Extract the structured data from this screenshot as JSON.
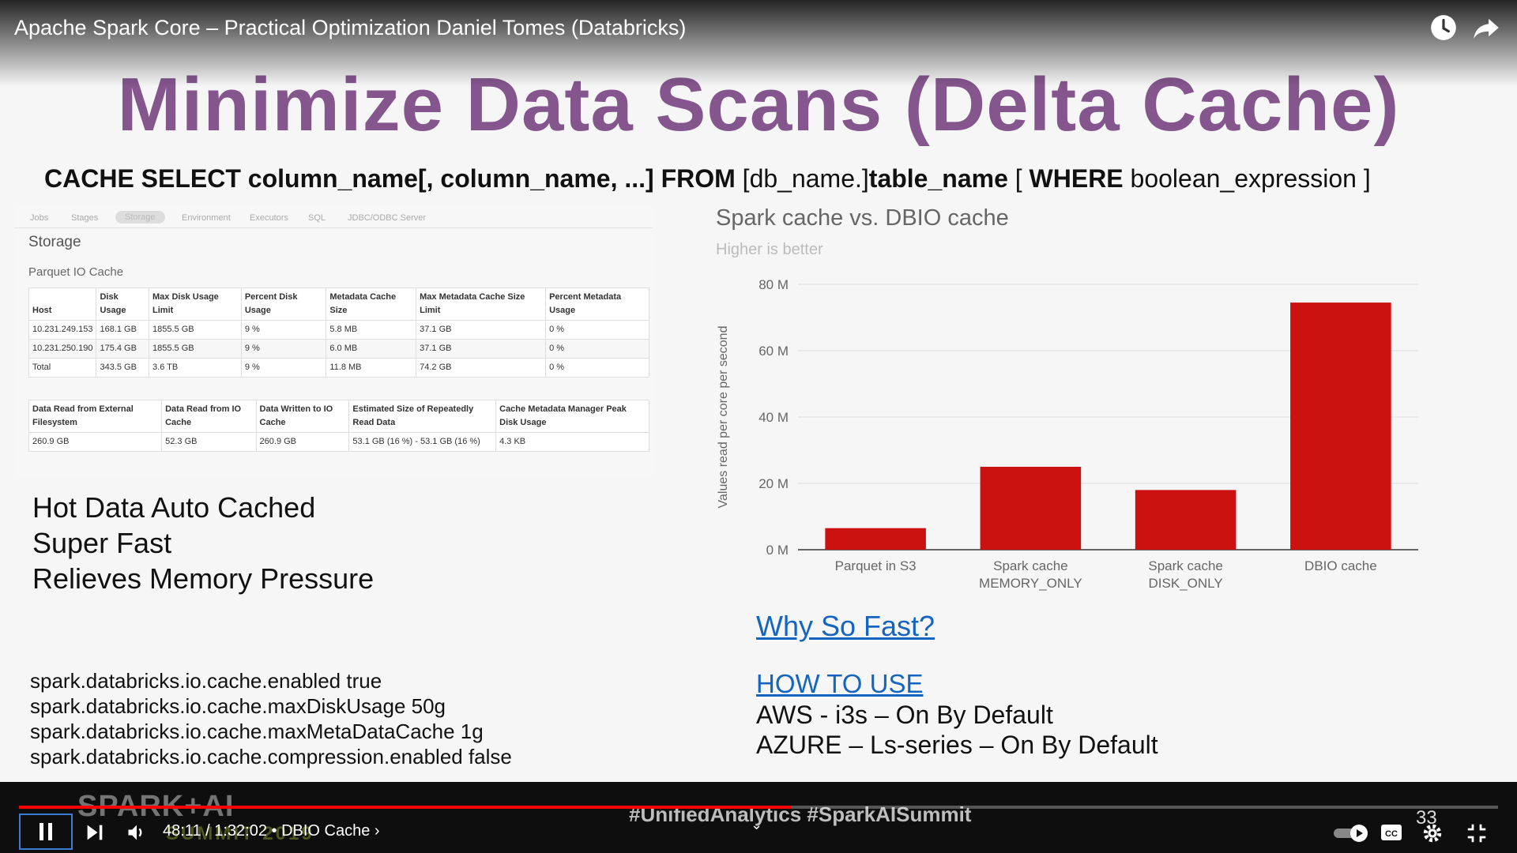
{
  "video": {
    "title": "Apache Spark Core – Practical Optimization Daniel Tomes (Databricks)",
    "icons": [
      "watch-later-icon",
      "share-icon"
    ]
  },
  "slide": {
    "title": "Minimize Data Scans (Delta Cache)",
    "sql": {
      "kw_cache_select": "CACHE SELECT",
      "columns": "column_name[, column_name, ...]",
      "kw_from": "FROM",
      "db": "[db_name.]",
      "table": "table_name",
      "bracket_open": "[",
      "kw_where": "WHERE",
      "expr": "boolean_expression ]"
    },
    "spark_ui": {
      "tabs": [
        "Jobs",
        "Stages",
        "Storage",
        "Environment",
        "Executors",
        "SQL",
        "JDBC/ODBC Server"
      ],
      "active_tab": "Storage",
      "heading": "Storage",
      "subheading": "Parquet IO Cache",
      "table1": {
        "headers": [
          "Host",
          "Disk Usage",
          "Max Disk Usage Limit",
          "Percent Disk Usage",
          "Metadata Cache Size",
          "Max Metadata Cache Size Limit",
          "Percent Metadata Usage"
        ],
        "rows": [
          [
            "10.231.249.153",
            "168.1 GB",
            "1855.5 GB",
            "9 %",
            "5.8 MB",
            "37.1 GB",
            "0 %"
          ],
          [
            "10.231.250.190",
            "175.4 GB",
            "1855.5 GB",
            "9 %",
            "6.0 MB",
            "37.1 GB",
            "0 %"
          ],
          [
            "Total",
            "343.5 GB",
            "3.6 TB",
            "9 %",
            "11.8 MB",
            "74.2 GB",
            "0 %"
          ]
        ]
      },
      "table2": {
        "headers": [
          "Data Read from External Filesystem",
          "Data Read from IO Cache",
          "Data Written to IO Cache",
          "Estimated Size of Repeatedly Read Data",
          "Cache Metadata Manager Peak Disk Usage"
        ],
        "rows": [
          [
            "260.9 GB",
            "52.3 GB",
            "260.9 GB",
            "53.1 GB (16 %) - 53.1 GB (16 %)",
            "4.3 KB"
          ]
        ]
      }
    },
    "bullets": [
      "Hot Data Auto Cached",
      "Super Fast",
      "Relieves Memory Pressure"
    ],
    "config": [
      "spark.databricks.io.cache.enabled true",
      "spark.databricks.io.cache.maxDiskUsage 50g",
      "spark.databricks.io.cache.maxMetaDataCache 1g",
      "spark.databricks.io.cache.compression.enabled false"
    ],
    "why_link": "Why So Fast?",
    "how_link": "HOW TO USE",
    "cloud": [
      "AWS - i3s – On By Default",
      "AZURE – Ls-series – On By Default"
    ]
  },
  "chart_data": {
    "type": "bar",
    "title": "Spark cache vs. DBIO cache",
    "subtitle": "Higher is better",
    "ylabel": "Values read per core per second",
    "xlabel": "",
    "categories": [
      "Parquet in S3",
      "Spark cache MEMORY_ONLY",
      "Spark cache DISK_ONLY",
      "DBIO cache"
    ],
    "category_lines": [
      [
        "Parquet in S3"
      ],
      [
        "Spark cache",
        "MEMORY_ONLY"
      ],
      [
        "Spark cache",
        "DISK_ONLY"
      ],
      [
        "DBIO cache"
      ]
    ],
    "values": [
      6.5,
      25,
      18,
      74.5
    ],
    "ylim": [
      0,
      80
    ],
    "yticks": [
      0,
      20,
      40,
      60,
      80
    ],
    "ytick_labels": [
      "0 M",
      "20 M",
      "40 M",
      "60 M",
      "80 M"
    ],
    "grid": true,
    "bar_color": "#cc1111"
  },
  "player": {
    "time": "48:11 / 1:32:02",
    "chapter": "DBIO Cache",
    "progress": 0.522,
    "overlay_hashtags": "#UnifiedAnalytics #SparkAISummit",
    "overlay_logo": "SPARK+AI",
    "overlay_logo_sub": "SUMMIT 2019",
    "slide_number": "33",
    "accent": "#ff0000"
  }
}
